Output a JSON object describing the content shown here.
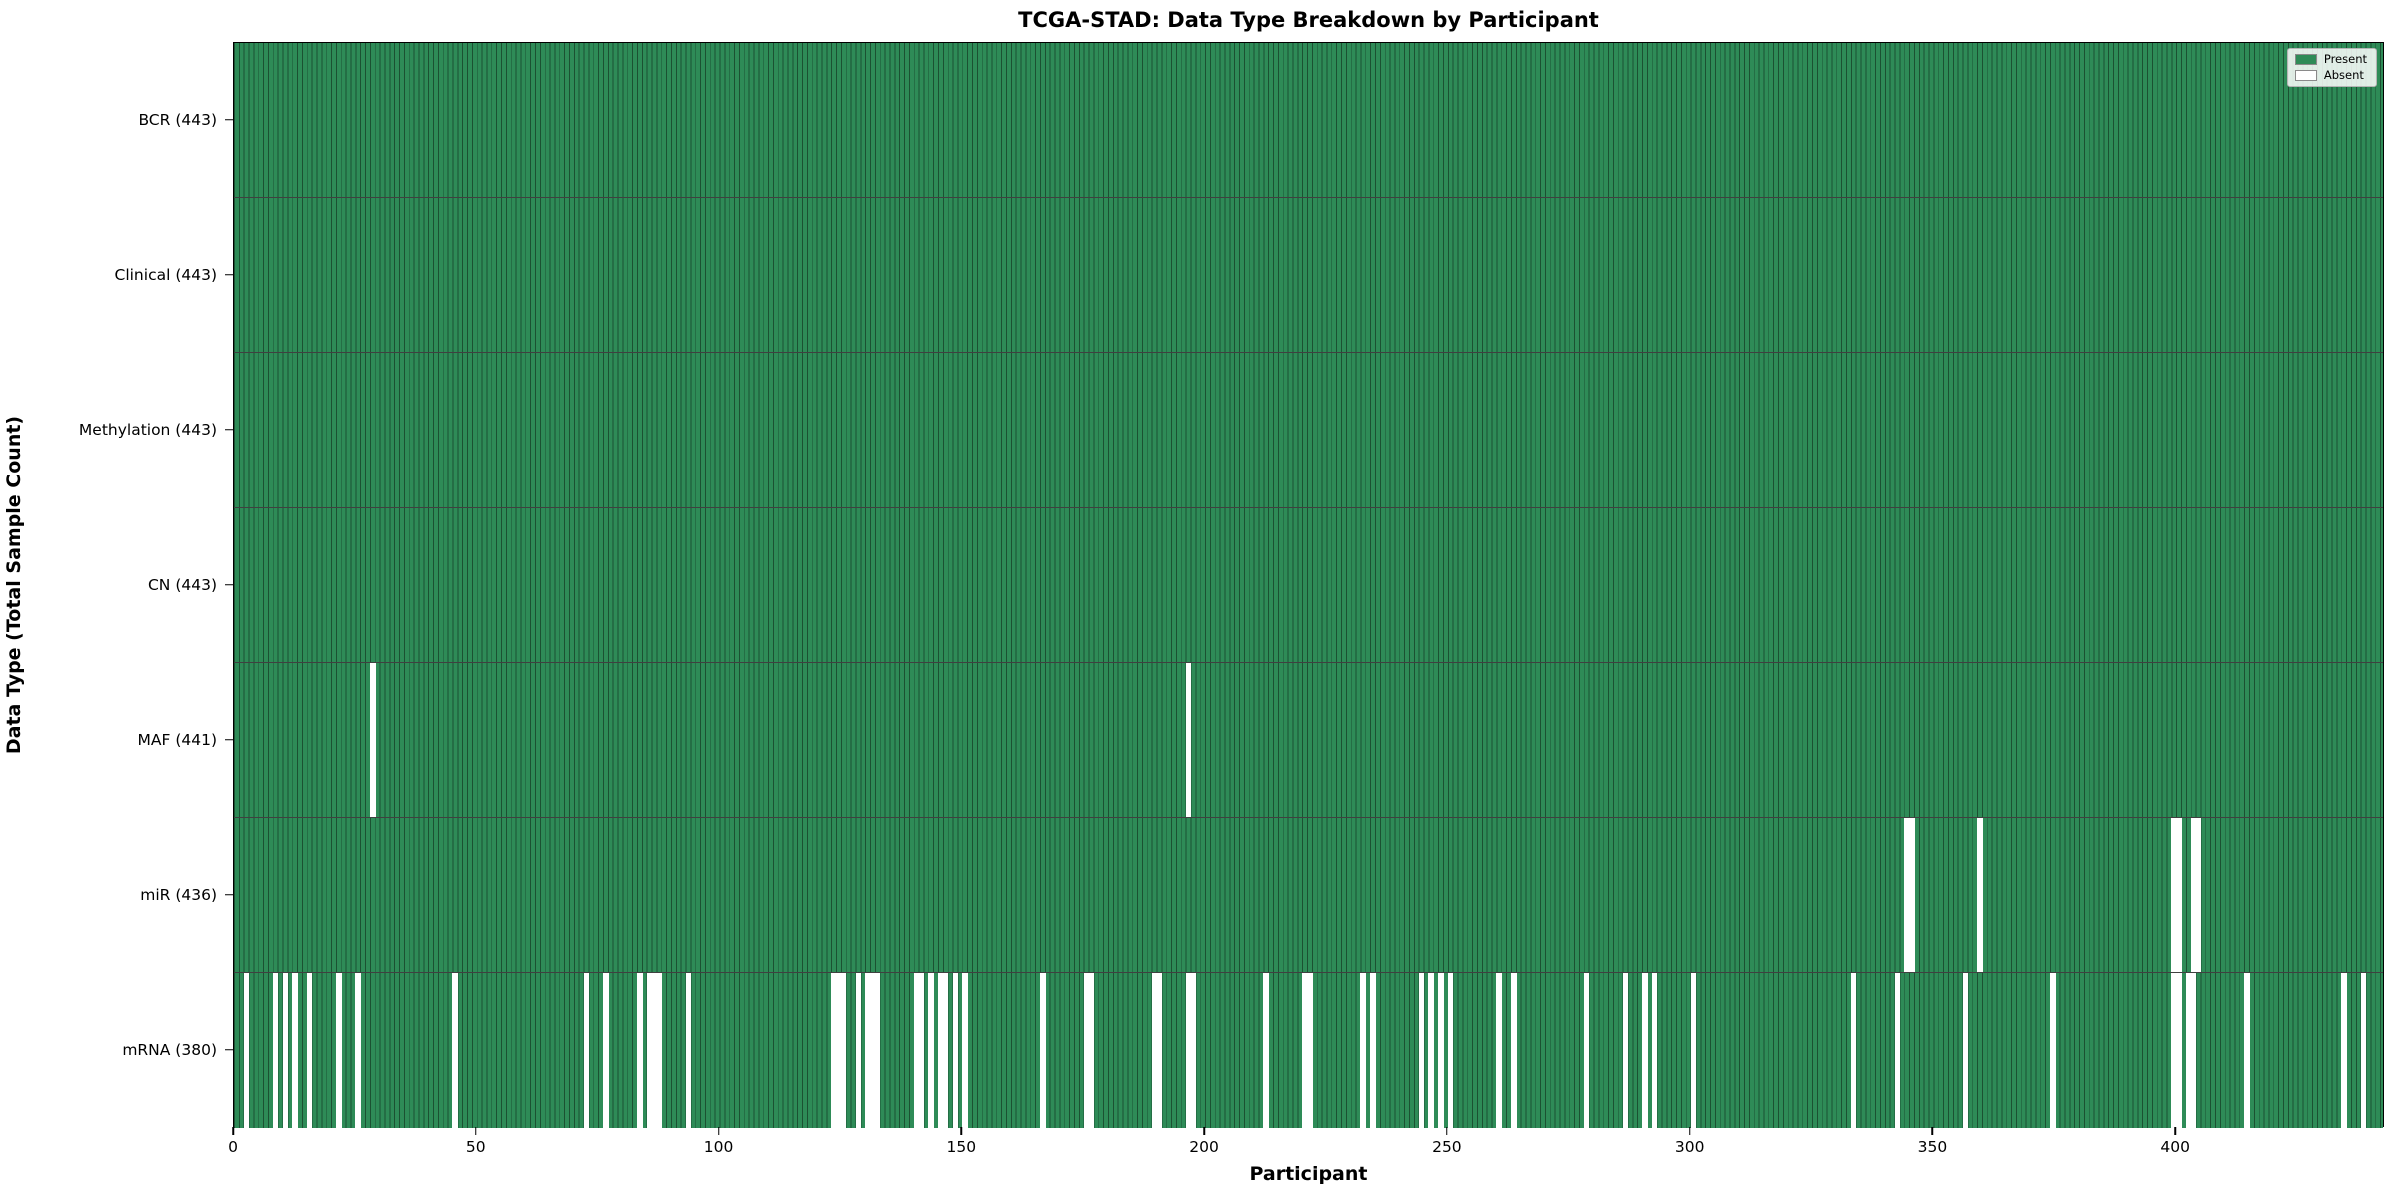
{
  "chart_data": {
    "type": "heatmap",
    "title": "TCGA-STAD: Data Type Breakdown by Participant",
    "xlabel": "Participant",
    "ylabel": "Data Type (Total Sample Count)",
    "x_ticks": [
      0,
      50,
      100,
      150,
      200,
      250,
      300,
      350,
      400
    ],
    "x_range": [
      0,
      443
    ],
    "participants": 443,
    "present_color": "#2e8b57",
    "absent_color": "#ffffff",
    "bar_edge_color": "rgba(0,0,0,0.42)",
    "grid": false,
    "legend": {
      "position": "upper-right",
      "items": [
        {
          "label": "Present",
          "color": "#2e8b57"
        },
        {
          "label": "Absent",
          "color": "#ffffff"
        }
      ]
    },
    "rows": [
      {
        "label": "BCR",
        "count": 443,
        "tick_label": "BCR (443)",
        "absent": []
      },
      {
        "label": "Clinical",
        "count": 443,
        "tick_label": "Clinical (443)",
        "absent": []
      },
      {
        "label": "Methylation",
        "count": 443,
        "tick_label": "Methylation (443)",
        "absent": []
      },
      {
        "label": "CN",
        "count": 443,
        "tick_label": "CN (443)",
        "absent": []
      },
      {
        "label": "MAF",
        "count": 441,
        "tick_label": "MAF (441)",
        "absent": [
          28,
          196
        ]
      },
      {
        "label": "miR",
        "count": 436,
        "tick_label": "miR (436)",
        "absent": [
          344,
          345,
          359,
          399,
          400,
          403,
          404
        ]
      },
      {
        "label": "mRNA",
        "count": 380,
        "tick_label": "mRNA (380)",
        "absent": [
          2,
          8,
          10,
          12,
          15,
          21,
          25,
          45,
          72,
          76,
          83,
          85,
          86,
          87,
          93,
          123,
          124,
          125,
          128,
          130,
          131,
          132,
          140,
          141,
          143,
          145,
          146,
          148,
          150,
          166,
          175,
          176,
          189,
          190,
          196,
          197,
          212,
          220,
          221,
          232,
          234,
          244,
          246,
          248,
          250,
          260,
          263,
          278,
          286,
          290,
          292,
          300,
          333,
          342,
          356,
          374,
          399,
          400,
          402,
          403,
          414,
          434,
          438
        ]
      }
    ]
  }
}
